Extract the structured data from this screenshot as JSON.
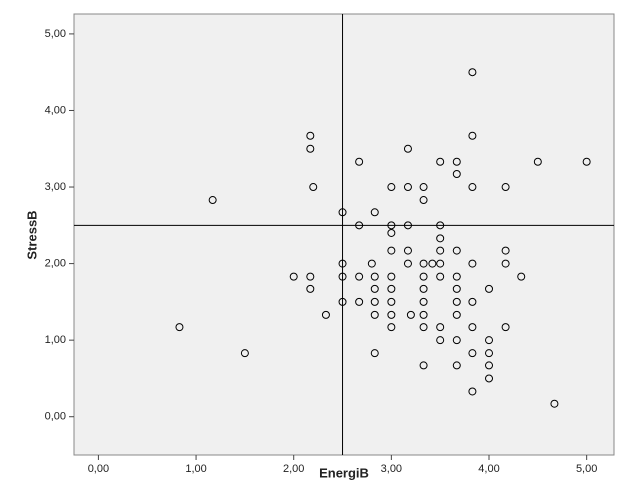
{
  "chart_data": {
    "type": "scatter",
    "x_label": "EnergiB",
    "y_label": "StressB",
    "xlim": [
      -0.25,
      5.28
    ],
    "ylim": [
      -0.5,
      5.26
    ],
    "xticks": [
      {
        "value": 0,
        "label": "0,00"
      },
      {
        "value": 1,
        "label": "1,00"
      },
      {
        "value": 2,
        "label": "2,00"
      },
      {
        "value": 3,
        "label": "3,00"
      },
      {
        "value": 4,
        "label": "4,00"
      },
      {
        "value": 5,
        "label": "5,00"
      }
    ],
    "yticks": [
      {
        "value": 0,
        "label": "0,00"
      },
      {
        "value": 1,
        "label": "1,00"
      },
      {
        "value": 2,
        "label": "2,00"
      },
      {
        "value": 3,
        "label": "3,00"
      },
      {
        "value": 4,
        "label": "4,00"
      },
      {
        "value": 5,
        "label": "5,00"
      }
    ],
    "reference_lines": {
      "x": 2.5,
      "y": 2.5
    },
    "series": [
      {
        "color": "#000000",
        "x": [
          3.83,
          2.17,
          2.17,
          2.67,
          3.17,
          3.5,
          3.67,
          3.83,
          4.5,
          5.0,
          3.67,
          2.2,
          3.0,
          3.17,
          3.33,
          3.83,
          4.17,
          1.17,
          3.33,
          2.5,
          2.83,
          2.67,
          3.0,
          3.17,
          3.5,
          3.0,
          3.5,
          3.0,
          3.17,
          3.5,
          3.67,
          4.17,
          2.5,
          2.8,
          3.17,
          3.33,
          3.42,
          3.5,
          3.83,
          4.17,
          2.0,
          2.17,
          2.5,
          2.67,
          2.83,
          3.0,
          3.33,
          3.5,
          3.67,
          4.33,
          2.17,
          2.83,
          3.0,
          3.33,
          3.67,
          4.0,
          2.5,
          2.67,
          2.83,
          3.0,
          3.33,
          3.67,
          3.83,
          2.33,
          2.83,
          3.0,
          3.2,
          3.33,
          3.67,
          0.83,
          3.0,
          3.33,
          3.5,
          3.83,
          4.17,
          3.5,
          3.67,
          4.0,
          1.5,
          2.83,
          3.83,
          4.0,
          3.33,
          3.67,
          4.0,
          4.0,
          3.83,
          4.67
        ],
        "values": [
          4.5,
          3.67,
          3.5,
          3.33,
          3.5,
          3.33,
          3.33,
          3.67,
          3.33,
          3.33,
          3.17,
          3.0,
          3.0,
          3.0,
          3.0,
          3.0,
          3.0,
          2.83,
          2.83,
          2.67,
          2.67,
          2.5,
          2.5,
          2.5,
          2.5,
          2.4,
          2.33,
          2.17,
          2.17,
          2.17,
          2.17,
          2.17,
          2.0,
          2.0,
          2.0,
          2.0,
          2.0,
          2.0,
          2.0,
          2.0,
          1.83,
          1.83,
          1.83,
          1.83,
          1.83,
          1.83,
          1.83,
          1.83,
          1.83,
          1.83,
          1.67,
          1.67,
          1.67,
          1.67,
          1.67,
          1.67,
          1.5,
          1.5,
          1.5,
          1.5,
          1.5,
          1.5,
          1.5,
          1.33,
          1.33,
          1.33,
          1.33,
          1.33,
          1.33,
          1.17,
          1.17,
          1.17,
          1.17,
          1.17,
          1.17,
          1.0,
          1.0,
          1.0,
          0.83,
          0.83,
          0.83,
          0.83,
          0.67,
          0.67,
          0.67,
          0.5,
          0.33,
          0.17
        ]
      }
    ]
  }
}
